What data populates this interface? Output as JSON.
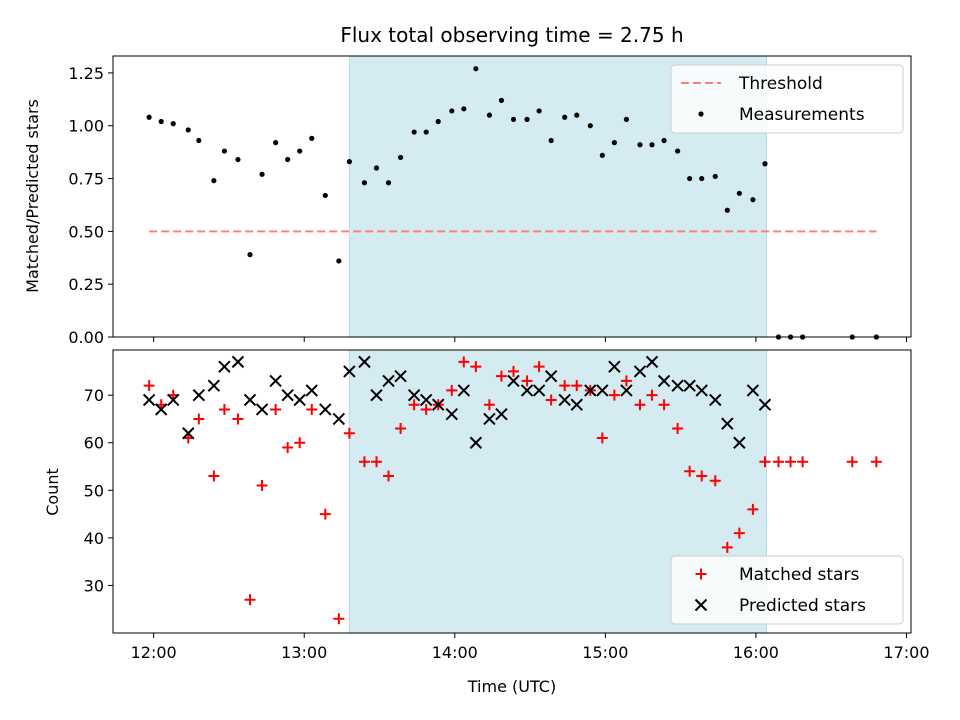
{
  "chart_data": {
    "type": "scatter",
    "title": "Flux total observing time = 2.75 h",
    "xlabel": "Time (UTC)",
    "x_ticks": [
      "12:00",
      "13:00",
      "14:00",
      "15:00",
      "16:00",
      "17:00"
    ],
    "shaded_region": {
      "x_start": 13.3,
      "x_end": 16.07,
      "color": "#d4ebf1"
    },
    "top": {
      "ylabel": "Matched/Predicted stars",
      "ylim": [
        0,
        1.33
      ],
      "y_ticks": [
        "0.00",
        "0.25",
        "0.50",
        "0.75",
        "1.00",
        "1.25"
      ],
      "legend": {
        "placement": "upper-right",
        "entries": [
          "Threshold",
          "Measurements"
        ]
      },
      "series": [
        {
          "name": "Threshold",
          "kind": "dashed-line",
          "color": "#ff7f7f",
          "x": [
            11.97,
            16.8
          ],
          "y": [
            0.5,
            0.5
          ]
        },
        {
          "name": "Measurements",
          "kind": "dot",
          "color": "#000000",
          "x": [
            11.97,
            12.05,
            12.13,
            12.23,
            12.3,
            12.4,
            12.47,
            12.56,
            12.64,
            12.72,
            12.81,
            12.89,
            12.97,
            13.05,
            13.14,
            13.23,
            13.3,
            13.4,
            13.48,
            13.56,
            13.64,
            13.73,
            13.81,
            13.89,
            13.98,
            14.06,
            14.14,
            14.23,
            14.31,
            14.39,
            14.48,
            14.56,
            14.64,
            14.73,
            14.81,
            14.9,
            14.98,
            15.06,
            15.14,
            15.23,
            15.31,
            15.39,
            15.48,
            15.56,
            15.64,
            15.73,
            15.81,
            15.89,
            15.98,
            16.06,
            16.15,
            16.23,
            16.31,
            16.64,
            16.8
          ],
          "y": [
            1.04,
            1.02,
            1.01,
            0.98,
            0.93,
            0.74,
            0.88,
            0.84,
            0.39,
            0.77,
            0.92,
            0.84,
            0.88,
            0.94,
            0.67,
            0.36,
            0.83,
            0.73,
            0.8,
            0.73,
            0.85,
            0.97,
            0.97,
            1.02,
            1.07,
            1.08,
            1.27,
            1.05,
            1.12,
            1.03,
            1.03,
            1.07,
            0.93,
            1.04,
            1.05,
            1.0,
            0.86,
            0.92,
            1.03,
            0.91,
            0.91,
            0.93,
            0.88,
            0.75,
            0.75,
            0.76,
            0.6,
            0.68,
            0.65,
            0.82,
            0.0,
            0.0,
            0.0,
            0.0,
            0.0
          ]
        }
      ]
    },
    "bottom": {
      "ylabel": "Count",
      "ylim": [
        20,
        79.5
      ],
      "y_ticks": [
        "30",
        "40",
        "50",
        "60",
        "70"
      ],
      "legend": {
        "placement": "lower-right",
        "entries": [
          "Matched stars",
          "Predicted stars"
        ]
      },
      "series": [
        {
          "name": "Matched stars",
          "kind": "plus",
          "color": "#ff0000",
          "x": [
            11.97,
            12.05,
            12.13,
            12.23,
            12.3,
            12.4,
            12.47,
            12.56,
            12.64,
            12.72,
            12.81,
            12.89,
            12.97,
            13.05,
            13.14,
            13.23,
            13.3,
            13.4,
            13.48,
            13.56,
            13.64,
            13.73,
            13.81,
            13.89,
            13.98,
            14.06,
            14.14,
            14.23,
            14.31,
            14.39,
            14.48,
            14.56,
            14.64,
            14.73,
            14.81,
            14.9,
            14.98,
            15.06,
            15.14,
            15.23,
            15.31,
            15.39,
            15.48,
            15.56,
            15.64,
            15.73,
            15.81,
            15.89,
            15.98,
            16.06,
            16.15,
            16.23,
            16.31,
            16.64,
            16.8
          ],
          "y": [
            72,
            68,
            70,
            61,
            65,
            53,
            67,
            65,
            27,
            51,
            67,
            59,
            60,
            67,
            45,
            23,
            62,
            56,
            56,
            53,
            63,
            68,
            67,
            68,
            71,
            77,
            76,
            68,
            74,
            75,
            73,
            76,
            69,
            72,
            72,
            71,
            61,
            70,
            73,
            68,
            70,
            68,
            63,
            54,
            53,
            52,
            38,
            41,
            46,
            56,
            56,
            56,
            56,
            56,
            56
          ]
        },
        {
          "name": "Predicted stars",
          "kind": "cross",
          "color": "#000000",
          "x": [
            11.97,
            12.05,
            12.13,
            12.23,
            12.3,
            12.4,
            12.47,
            12.56,
            12.64,
            12.72,
            12.81,
            12.89,
            12.97,
            13.05,
            13.14,
            13.23,
            13.3,
            13.4,
            13.48,
            13.56,
            13.64,
            13.73,
            13.81,
            13.89,
            13.98,
            14.06,
            14.14,
            14.23,
            14.31,
            14.39,
            14.48,
            14.56,
            14.64,
            14.73,
            14.81,
            14.9,
            14.98,
            15.06,
            15.14,
            15.23,
            15.31,
            15.39,
            15.48,
            15.56,
            15.64,
            15.73,
            15.81,
            15.89,
            15.98,
            16.06
          ],
          "y": [
            69,
            67,
            69,
            62,
            70,
            72,
            76,
            77,
            69,
            67,
            73,
            70,
            69,
            71,
            67,
            65,
            75,
            77,
            70,
            73,
            74,
            70,
            69,
            68,
            66,
            71,
            60,
            65,
            66,
            73,
            71,
            71,
            74,
            69,
            68,
            71,
            71,
            76,
            71,
            75,
            77,
            73,
            72,
            72,
            71,
            69,
            64,
            60,
            71,
            68
          ]
        }
      ]
    }
  }
}
